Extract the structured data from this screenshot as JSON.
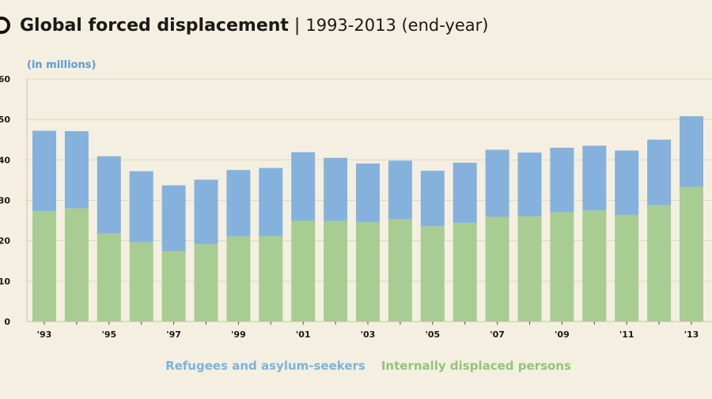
{
  "title": {
    "main": "Global forced displacement",
    "separator": "|",
    "sub": "1993-2013 (end-year)"
  },
  "colors": {
    "background": "#f4efe1",
    "refugees": "#85b2dc",
    "idp": "#a8cd92",
    "unit_label": "#5b9bd5",
    "legend_refugees": "#7bb3df",
    "legend_idp": "#93c47b",
    "gridline": "#ddd9bd",
    "axis": "#c7c4a6"
  },
  "chart_data": {
    "type": "bar",
    "stacked": true,
    "unit_label": "(in millions)",
    "ylim": [
      0,
      60
    ],
    "yticks": [
      "0",
      "10",
      "20",
      "30",
      "40",
      "50",
      "60"
    ],
    "grid": true,
    "legend_position": "bottom",
    "categories": [
      "1993",
      "1994",
      "1995",
      "1996",
      "1997",
      "1998",
      "1999",
      "2000",
      "2001",
      "2002",
      "2003",
      "2004",
      "2005",
      "2006",
      "2007",
      "2008",
      "2009",
      "2010",
      "2011",
      "2012",
      "2013"
    ],
    "xtick_labels": [
      "'93",
      "",
      "'95",
      "",
      "'97",
      "",
      "'99",
      "",
      "'01",
      "",
      "'03",
      "",
      "'05",
      "",
      "'07",
      "",
      "'09",
      "",
      "'11",
      "",
      "'13"
    ],
    "series": [
      {
        "name": "Internally displaced persons",
        "values": [
          27.3,
          28.0,
          21.8,
          19.6,
          17.4,
          19.2,
          21.1,
          21.2,
          24.9,
          24.9,
          24.6,
          25.3,
          23.6,
          24.4,
          25.9,
          26.0,
          27.1,
          27.5,
          26.4,
          28.8,
          33.3
        ]
      },
      {
        "name": "Refugees and asylum-seekers",
        "values": [
          19.9,
          19.1,
          19.1,
          17.6,
          16.3,
          15.9,
          16.4,
          16.8,
          17.0,
          15.6,
          14.5,
          14.5,
          13.7,
          14.9,
          16.6,
          15.8,
          15.9,
          16.0,
          15.9,
          16.2,
          17.5
        ]
      }
    ]
  },
  "legend": {
    "refugees": "Refugees and asylum-seekers",
    "idp": "Internally displaced persons"
  }
}
